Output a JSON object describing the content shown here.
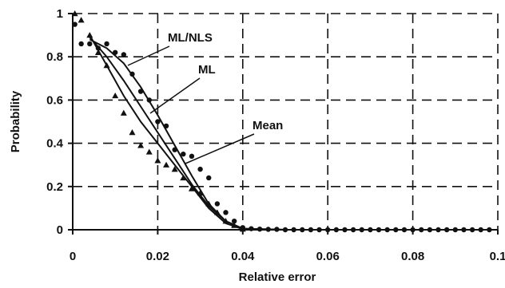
{
  "chart_data": {
    "type": "line",
    "xlabel": "Relative error",
    "ylabel": "Probability",
    "xlim": [
      0,
      0.1
    ],
    "ylim": [
      0,
      1
    ],
    "x_ticks": [
      0,
      0.02,
      0.04,
      0.06,
      0.08,
      0.1
    ],
    "x_tick_labels": [
      "0",
      "0.02",
      "0.04",
      "0.06",
      "0.08",
      "0.1"
    ],
    "y_ticks": [
      0,
      0.2,
      0.4,
      0.6,
      0.8,
      1
    ],
    "y_tick_labels": [
      "0",
      "0.2",
      "0.4",
      "0.6",
      "0.8",
      "1"
    ],
    "grid": true,
    "series": [
      {
        "name": "ML/NLS",
        "kind": "line",
        "x": [
          0.004,
          0.008,
          0.012,
          0.016,
          0.02,
          0.024,
          0.028,
          0.032,
          0.036,
          0.04,
          0.05,
          0.1
        ],
        "y": [
          0.88,
          0.84,
          0.77,
          0.66,
          0.53,
          0.39,
          0.25,
          0.12,
          0.04,
          0.005,
          0,
          0
        ]
      },
      {
        "name": "ML",
        "kind": "line",
        "x": [
          0.004,
          0.008,
          0.012,
          0.016,
          0.02,
          0.024,
          0.028,
          0.032,
          0.036,
          0.04,
          0.05,
          0.1
        ],
        "y": [
          0.89,
          0.8,
          0.69,
          0.57,
          0.45,
          0.33,
          0.21,
          0.11,
          0.04,
          0.005,
          0,
          0
        ]
      },
      {
        "name": "Mean",
        "kind": "line",
        "x": [
          0.004,
          0.008,
          0.012,
          0.016,
          0.02,
          0.024,
          0.028,
          0.032,
          0.036,
          0.04,
          0.05,
          0.1
        ],
        "y": [
          0.9,
          0.76,
          0.62,
          0.5,
          0.4,
          0.3,
          0.2,
          0.1,
          0.03,
          0.003,
          0,
          0
        ]
      },
      {
        "name": "",
        "kind": "points-circle",
        "x": [
          0.0005,
          0.002,
          0.004,
          0.006,
          0.008,
          0.01,
          0.012,
          0.014,
          0.016,
          0.018,
          0.02,
          0.022,
          0.024,
          0.026,
          0.028,
          0.03,
          0.032,
          0.034,
          0.036,
          0.038,
          0.04,
          0.042,
          0.044,
          0.046,
          0.048,
          0.05,
          0.052,
          0.054,
          0.056,
          0.058,
          0.06,
          0.062,
          0.064,
          0.066,
          0.068,
          0.07,
          0.072,
          0.074,
          0.076,
          0.078,
          0.08,
          0.082,
          0.084,
          0.086,
          0.088,
          0.09,
          0.092,
          0.094,
          0.096,
          0.098
        ],
        "y": [
          0.95,
          0.86,
          0.86,
          0.84,
          0.86,
          0.82,
          0.81,
          0.72,
          0.64,
          0.6,
          0.5,
          0.48,
          0.37,
          0.35,
          0.34,
          0.28,
          0.24,
          0.12,
          0.08,
          0.04,
          0.01,
          0.005,
          0.003,
          0.002,
          0.002,
          0,
          0,
          0,
          0,
          0,
          0,
          0,
          0,
          0,
          0,
          0,
          0,
          0,
          0,
          0,
          0,
          0,
          0,
          0,
          0,
          0,
          0,
          0,
          0,
          0
        ]
      },
      {
        "name": "",
        "kind": "points-triangle",
        "x": [
          0.0005,
          0.002,
          0.004,
          0.006,
          0.008,
          0.01,
          0.012,
          0.014,
          0.016,
          0.018,
          0.02,
          0.022,
          0.024,
          0.026,
          0.028,
          0.03,
          0.032,
          0.034,
          0.036,
          0.038,
          0.04
        ],
        "y": [
          1.0,
          0.97,
          0.9,
          0.82,
          0.76,
          0.62,
          0.54,
          0.45,
          0.39,
          0.36,
          0.32,
          0.3,
          0.28,
          0.24,
          0.19,
          0.17,
          0.12,
          0.08,
          0.04,
          0.02,
          0.003
        ]
      }
    ],
    "annotations": [
      {
        "text": "ML/NLS"
      },
      {
        "text": "ML"
      },
      {
        "text": "Mean"
      }
    ]
  }
}
